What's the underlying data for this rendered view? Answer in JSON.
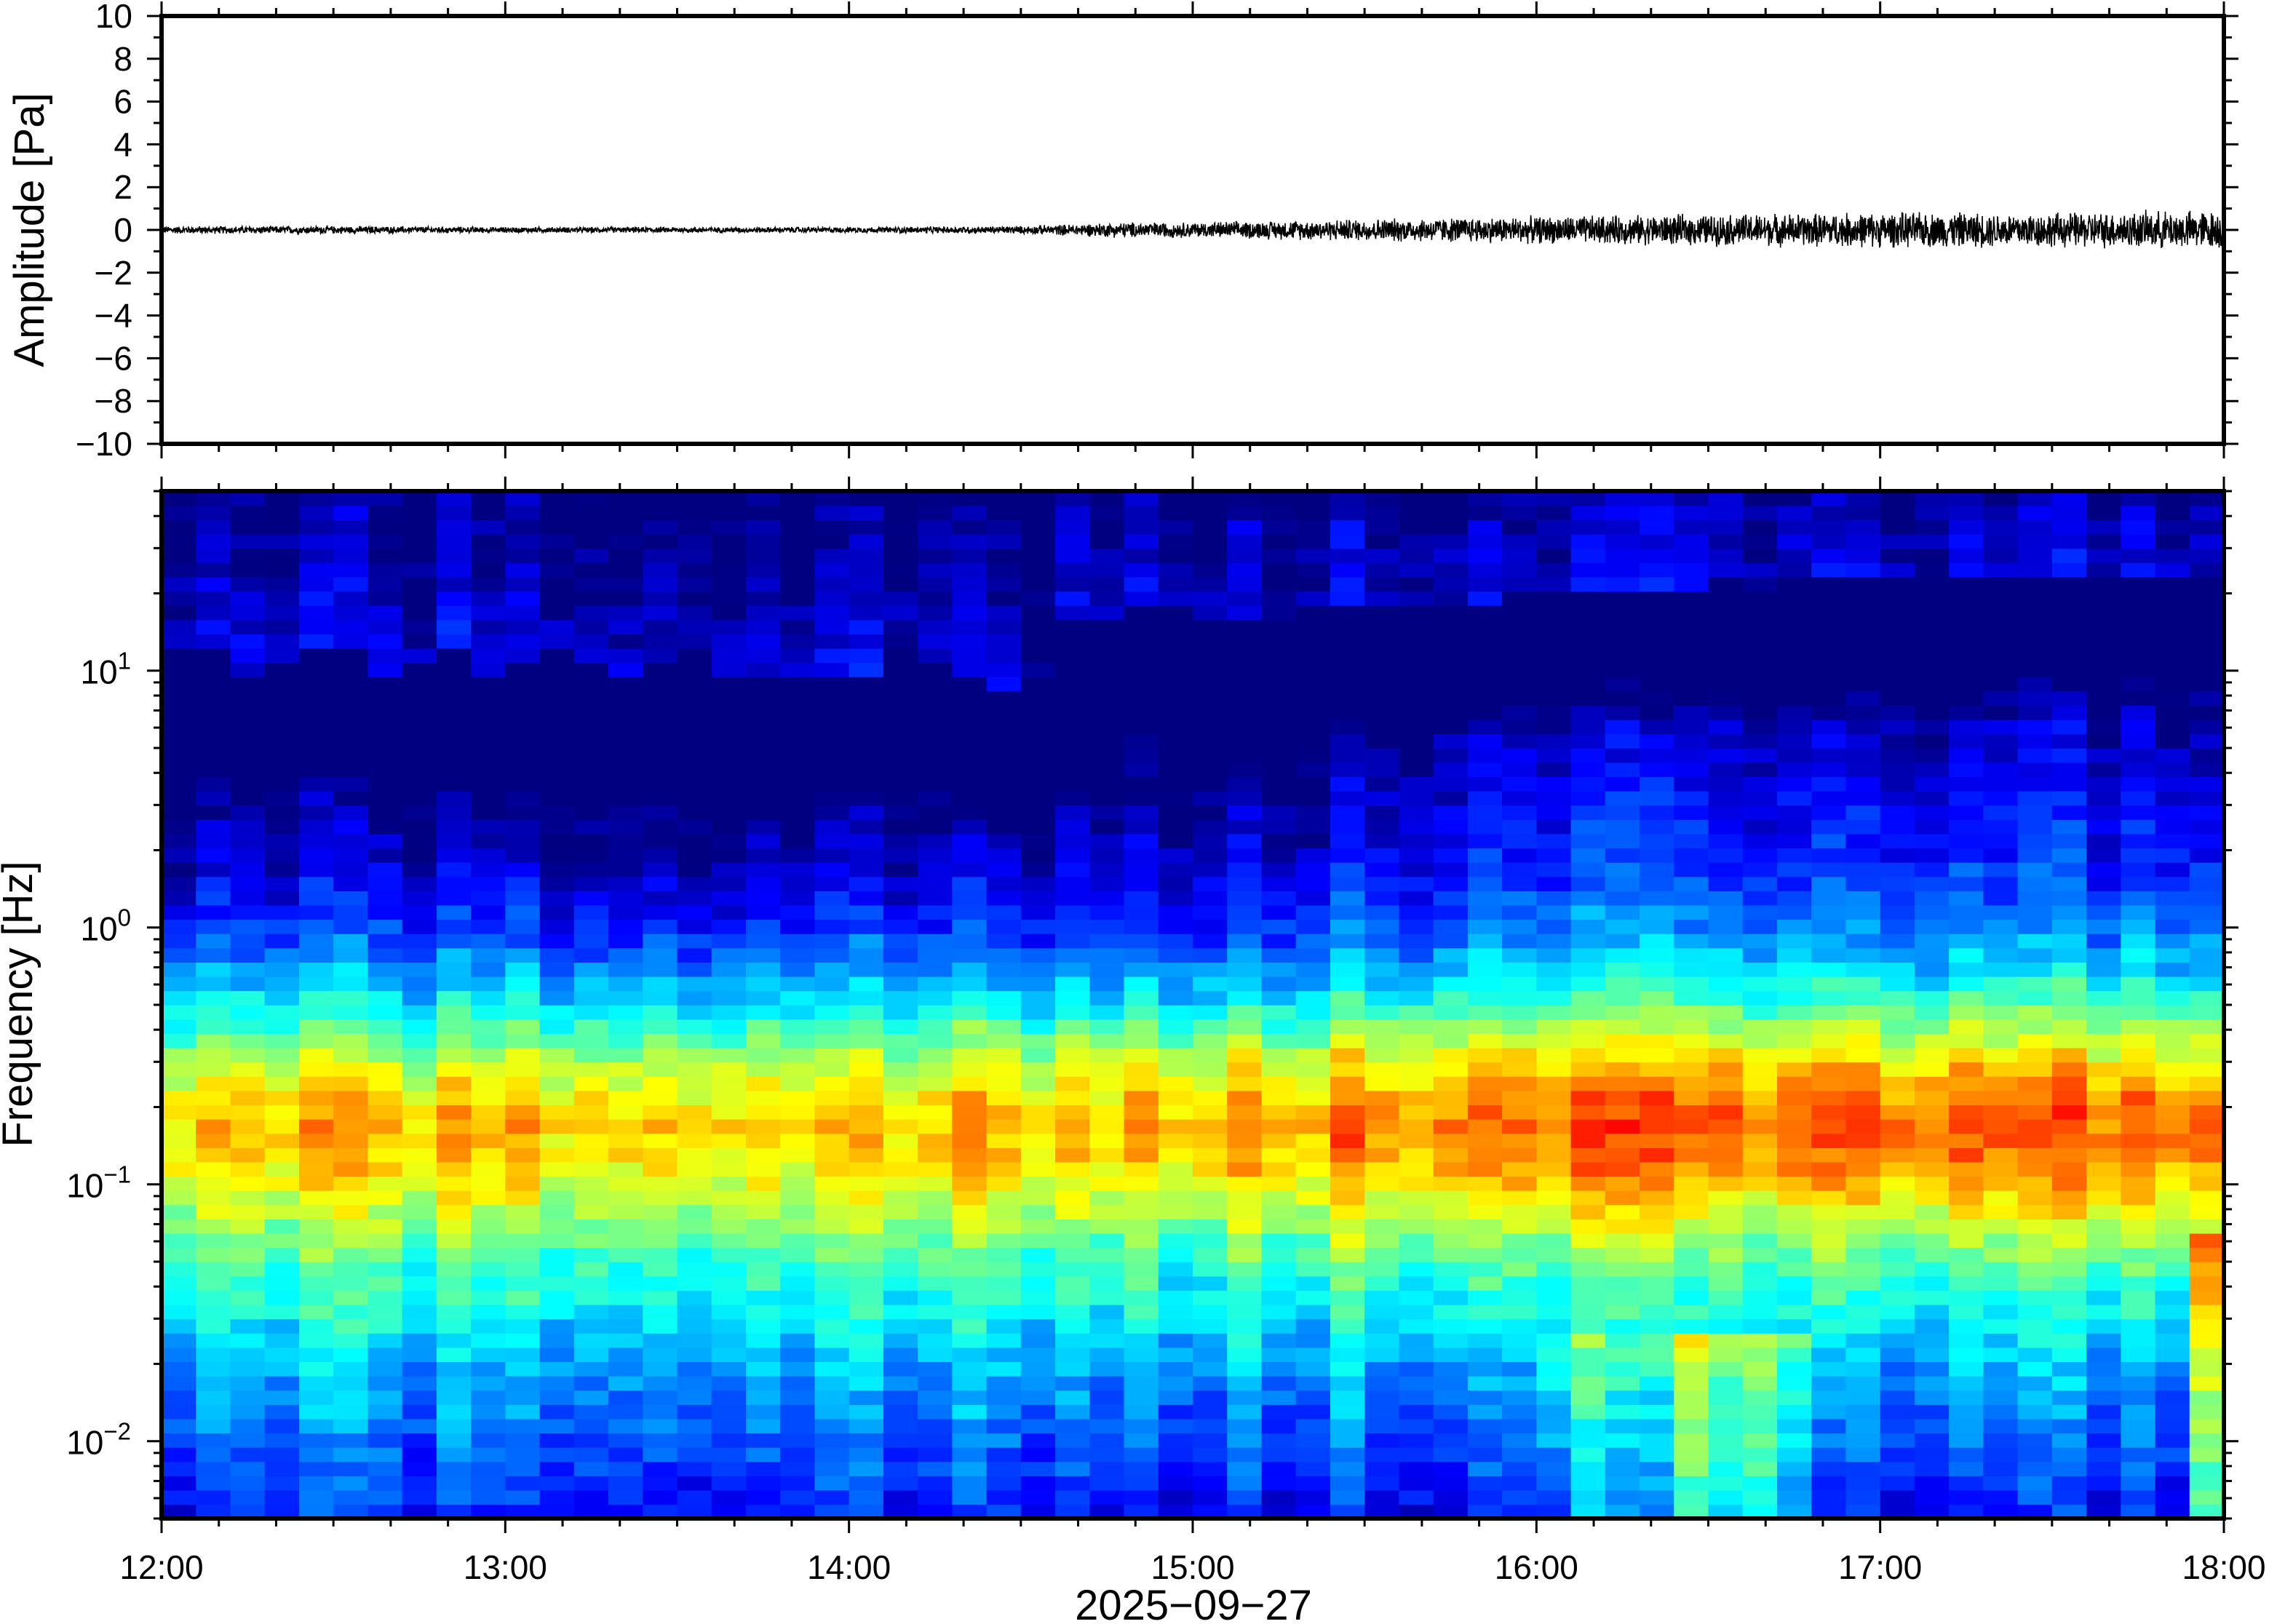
{
  "chart_data": [
    {
      "type": "line",
      "panel": "waveform",
      "ylabel": "Amplitude [Pa]",
      "ylim": [
        -10,
        10
      ],
      "yticks": [
        10,
        8,
        6,
        4,
        2,
        0,
        -2,
        -4,
        -6,
        -8,
        -10
      ],
      "ytick_labels": [
        "10",
        "8",
        "6",
        "4",
        "2",
        "0",
        "−2",
        "−4",
        "−6",
        "−8",
        "−10"
      ],
      "x_range": [
        "12:00",
        "18:00"
      ],
      "series": [
        {
          "color": "#000000",
          "envelope_time_hours": [
            12.0,
            12.5,
            13.0,
            13.5,
            14.0,
            14.5,
            14.8,
            15.0,
            15.3,
            15.6,
            16.0,
            16.5,
            17.0,
            17.5,
            18.0
          ],
          "envelope_amplitude_pa": [
            0.2,
            0.2,
            0.15,
            0.15,
            0.15,
            0.2,
            0.4,
            0.4,
            0.5,
            0.6,
            0.7,
            0.8,
            0.9,
            0.9,
            1.0
          ]
        }
      ],
      "grid": false
    },
    {
      "type": "heatmap",
      "panel": "spectrogram",
      "ylabel": "Frequency [Hz]",
      "yscale": "log",
      "ylim": [
        0.005,
        50
      ],
      "yticks": [
        0.01,
        0.1,
        1,
        10
      ],
      "ytick_labels": [
        {
          "base": "10",
          "exp": "−2"
        },
        {
          "base": "10",
          "exp": "−1"
        },
        {
          "base": "10",
          "exp": "0"
        },
        {
          "base": "10",
          "exp": "1"
        }
      ],
      "xlabel": "2025−09−27",
      "x_range": [
        "12:00",
        "18:00"
      ],
      "xtick_labels": [
        "12:00",
        "13:00",
        "14:00",
        "15:00",
        "16:00",
        "17:00",
        "18:00"
      ],
      "colormap": "jet",
      "time_bins": 60,
      "freq_bins": 72,
      "noise_floor_cutoff_hz": [
        12,
        12,
        10,
        11,
        12,
        13,
        10,
        11,
        12,
        10,
        11,
        12,
        11,
        10,
        11,
        12,
        10,
        9,
        9,
        9,
        10,
        12,
        11,
        9,
        8,
        8,
        15,
        16,
        18,
        17,
        15,
        16,
        16,
        17,
        18,
        18,
        18,
        19,
        18,
        20,
        20,
        20,
        21,
        20,
        20,
        22,
        21,
        22,
        22,
        23,
        22,
        22,
        22,
        23,
        24,
        23,
        23,
        24,
        24,
        24
      ],
      "grid": false
    }
  ]
}
